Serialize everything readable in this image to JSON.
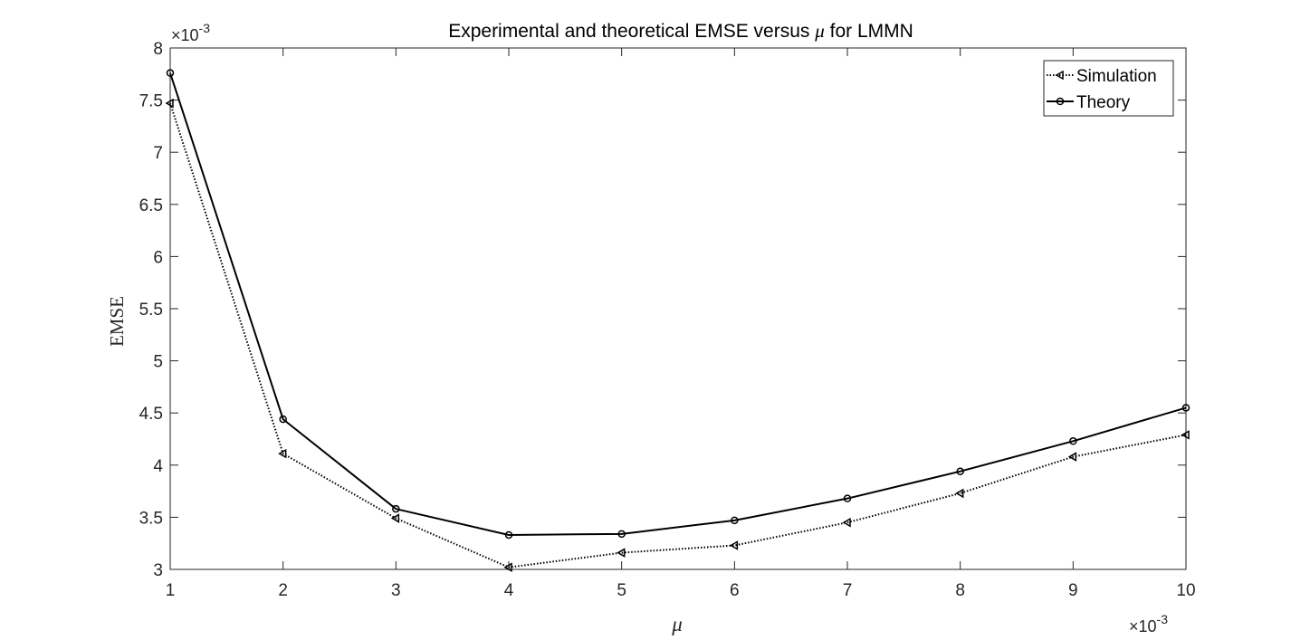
{
  "chart_data": {
    "type": "line",
    "title_prefix": "Experimental and theoretical EMSE versus ",
    "title_symbol": "μ",
    "title_suffix": " for LMMN",
    "xlabel": "μ",
    "ylabel": "EMSE",
    "x_multiplier": "×10",
    "x_multiplier_exp": "-3",
    "y_multiplier": "×10",
    "y_multiplier_exp": "-3",
    "xlim": [
      1,
      10
    ],
    "ylim": [
      3,
      8
    ],
    "x_ticks": [
      1,
      2,
      3,
      4,
      5,
      6,
      7,
      8,
      9,
      10
    ],
    "y_ticks": [
      3,
      3.5,
      4,
      4.5,
      5,
      5.5,
      6,
      6.5,
      7,
      7.5,
      8
    ],
    "y_tick_labels": [
      "3",
      "3.5",
      "4",
      "4.5",
      "5",
      "5.5",
      "6",
      "6.5",
      "7",
      "7.5",
      "8"
    ],
    "x": [
      1,
      2,
      3,
      4,
      5,
      6,
      7,
      8,
      9,
      10
    ],
    "series": [
      {
        "name": "Simulation",
        "values": [
          7.47,
          4.11,
          3.49,
          3.02,
          3.16,
          3.23,
          3.45,
          3.73,
          4.08,
          4.29
        ],
        "color": "#000000",
        "line_style": "dotted",
        "marker": "triangle-left"
      },
      {
        "name": "Theory",
        "values": [
          7.76,
          4.44,
          3.58,
          3.33,
          3.34,
          3.47,
          3.68,
          3.94,
          4.23,
          4.55
        ],
        "color": "#000000",
        "line_style": "solid",
        "marker": "circle"
      }
    ],
    "grid": false,
    "legend_position": "top-right"
  }
}
